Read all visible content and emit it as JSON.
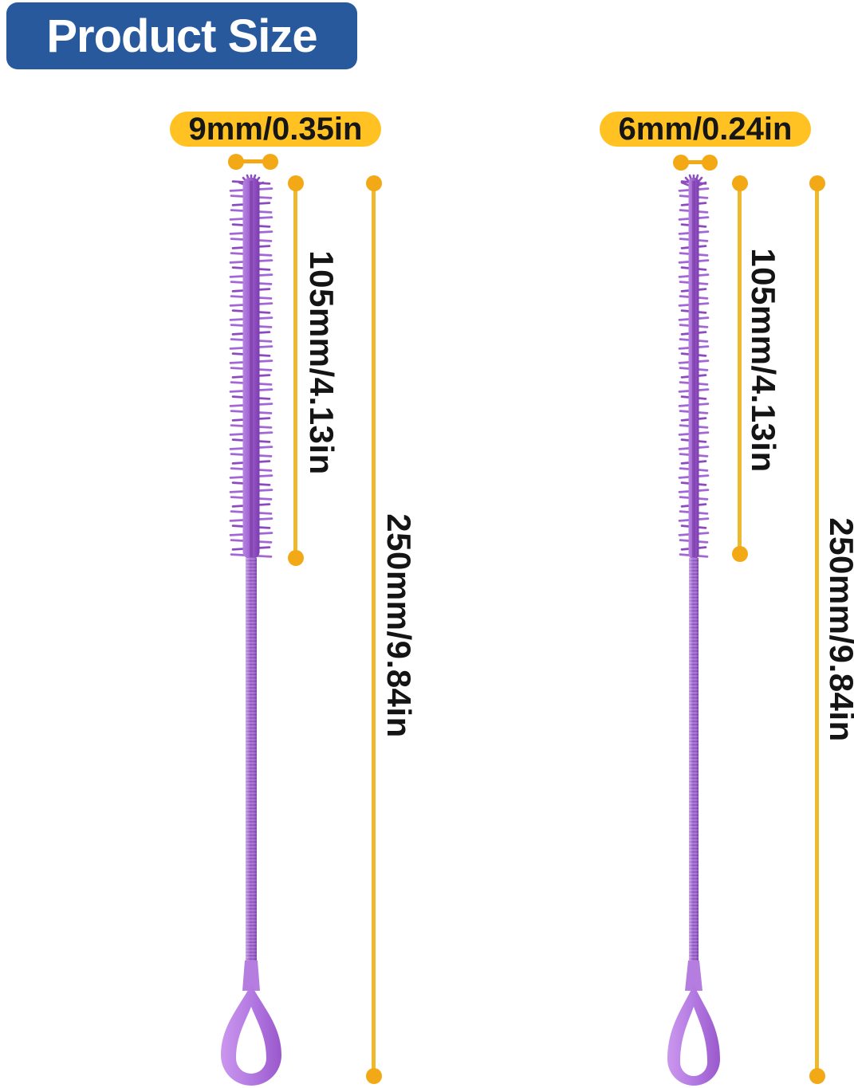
{
  "title": "Product Size",
  "colors": {
    "title_bg": "#27599c",
    "label_bg": "#ffc222",
    "label_text": "#161616",
    "dim_line": "#ecb92f",
    "dim_dot": "#f2a915",
    "brush_purple": "#9a5ccb"
  },
  "brushes": [
    {
      "id": "brush-9mm",
      "diameter_label": "9mm/0.35in",
      "brush_length_label": "105mm/4.13in",
      "total_length_label": "250mm/9.84in"
    },
    {
      "id": "brush-6mm",
      "diameter_label": "6mm/0.24in",
      "brush_length_label": "105mm/4.13in",
      "total_length_label": "250mm/9.84in"
    }
  ]
}
